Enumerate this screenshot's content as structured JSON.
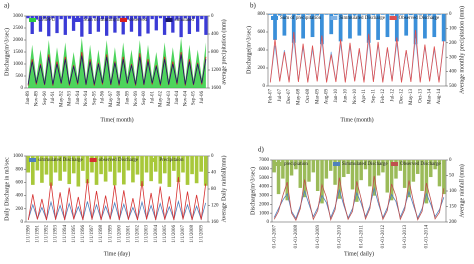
{
  "chart_data": [
    {
      "type": "line",
      "label": "a)",
      "xlabel": "Time( month)",
      "ylabel": "Discharge(m^3/sec)",
      "y2label": "average precipitation (mm)",
      "legend": "top",
      "categories": [
        "Jan-89",
        null,
        "Nov-89",
        null,
        "Sep-90",
        null,
        "Jul-91",
        null,
        "May-92",
        null,
        "Mar-93",
        null,
        "Jan-94",
        null,
        "Nov-94",
        null,
        "Sep-95",
        null,
        "Jul-96",
        null,
        "May-97",
        null,
        "Mar-98",
        null,
        "Jan-99",
        null,
        "Nov-99",
        null,
        "Sep-00",
        null,
        "Jul-01",
        null,
        "May-02",
        null,
        "Mar-03",
        null,
        "Jan-04",
        null,
        "Nov-04",
        null,
        "Sep-05",
        null,
        "Jul-06",
        null
      ],
      "ylim": [
        0,
        3000
      ],
      "yticks": [
        0,
        500,
        1000,
        1500,
        2000,
        2500,
        3000
      ],
      "y2lim": [
        1600,
        0
      ],
      "y2ticks": [
        0,
        400,
        800,
        1200,
        1600
      ],
      "series": [
        {
          "name": "L95PPU",
          "color": "#2ecc40",
          "style": "area",
          "values": [
            300,
            1800,
            400,
            1600,
            350,
            2000,
            300,
            1700,
            450,
            1900,
            300,
            1500,
            400,
            2100,
            350,
            1800,
            300,
            1600,
            400,
            2000,
            350,
            1700,
            300,
            1900,
            450,
            1600,
            300,
            2000,
            350,
            1800,
            400,
            1500,
            300,
            1900,
            350,
            1700,
            400,
            2100,
            300,
            1800,
            350,
            1600,
            400,
            1900
          ]
        },
        {
          "name": "Sum of rainfall(mm)",
          "color": "#3b3bd6",
          "style": "bar",
          "axis": "y2",
          "values": [
            50,
            400,
            80,
            350,
            60,
            450,
            50,
            380,
            70,
            420,
            60,
            330,
            80,
            460,
            60,
            400,
            50,
            350,
            70,
            440,
            60,
            370,
            50,
            410,
            80,
            350,
            60,
            450,
            60,
            390,
            70,
            320,
            50,
            420,
            60,
            370,
            80,
            470,
            50,
            400,
            60,
            350,
            70,
            420
          ]
        },
        {
          "name": "observed",
          "color": "#d62020",
          "style": "line",
          "values": [
            100,
            1200,
            150,
            1000,
            120,
            1400,
            100,
            1100,
            180,
            1300,
            100,
            950,
            150,
            1500,
            120,
            1200,
            100,
            1050,
            150,
            1400,
            120,
            1100,
            100,
            1300,
            180,
            1000,
            100,
            1450,
            120,
            1200,
            150,
            950,
            100,
            1300,
            120,
            1100,
            150,
            1500,
            100,
            1200,
            120,
            1050,
            150,
            1300
          ]
        },
        {
          "name": "simulated",
          "color": "#1a1a6e",
          "style": "line",
          "values": [
            150,
            1100,
            200,
            950,
            150,
            1300,
            150,
            1000,
            200,
            1200,
            150,
            900,
            200,
            1350,
            150,
            1100,
            150,
            1000,
            200,
            1300,
            150,
            1050,
            150,
            1200,
            200,
            950,
            150,
            1300,
            150,
            1100,
            200,
            900,
            150,
            1200,
            150,
            1000,
            200,
            1400,
            150,
            1100,
            150,
            1000,
            200,
            1200
          ]
        }
      ]
    },
    {
      "type": "line",
      "label": "b)",
      "xlabel": "Time (month)",
      "ylabel": "Discharge(m^3/sec)",
      "y2label": "Average monthly precipitation (mm)",
      "legend": "top",
      "categories": [
        "Feb-07",
        null,
        "Jul-07",
        null,
        "Dec-07",
        null,
        "May-08",
        null,
        "Oct-08",
        null,
        "Mar-09",
        null,
        "Aug-09",
        null,
        "Jan-10",
        null,
        "Jun-10",
        null,
        "Nov-10",
        null,
        "Apr-11",
        null,
        "Sep-11",
        null,
        "Feb-12",
        null,
        "Jul-12",
        null,
        "Dec-12",
        null,
        "May-13",
        null,
        "Oct-13",
        null,
        "Mar-14",
        null,
        "Aug-14",
        null
      ],
      "ylim": [
        0,
        800
      ],
      "yticks": [
        0,
        200,
        400,
        600,
        800
      ],
      "y2lim": [
        500,
        0
      ],
      "y2ticks": [
        0,
        100,
        200,
        300,
        400,
        500
      ],
      "series": [
        {
          "name": "Sum of precipitation",
          "color": "#3a8fd9",
          "style": "bar",
          "axis": "y2",
          "values": [
            5,
            180,
            10,
            150,
            5,
            200,
            8,
            170,
            5,
            160,
            10,
            210,
            5,
            140,
            8,
            190,
            5,
            170,
            10,
            150,
            5,
            200,
            8,
            180,
            5,
            160,
            10,
            190,
            5,
            150,
            8,
            210,
            5,
            170,
            10,
            160,
            5,
            190
          ]
        },
        {
          "name": "Simmulated Discharge",
          "color": "#7fb2e5",
          "style": "line",
          "values": [
            50,
            450,
            60,
            400,
            50,
            520,
            55,
            430,
            50,
            410,
            60,
            500,
            50,
            380,
            55,
            470,
            50,
            440,
            60,
            400,
            50,
            510,
            55,
            460,
            50,
            420,
            60,
            480,
            50,
            390,
            55,
            530,
            50,
            440,
            60,
            410,
            50,
            470
          ]
        },
        {
          "name": "Observed Discharge",
          "color": "#e05050",
          "style": "line",
          "values": [
            40,
            520,
            50,
            380,
            40,
            600,
            45,
            470,
            40,
            450,
            50,
            560,
            40,
            350,
            45,
            520,
            40,
            480,
            50,
            420,
            40,
            580,
            45,
            490,
            40,
            430,
            50,
            540,
            40,
            400,
            45,
            620,
            40,
            460,
            50,
            440,
            40,
            500
          ]
        }
      ]
    },
    {
      "type": "line",
      "label": null,
      "xlabel": "Time (day)",
      "ylabel": "Daily Discharge in m3/sec",
      "y2label": "Average Daily rainfall(mm)",
      "legend": "top",
      "categories": [
        "1/1/1990",
        null,
        "1/1/1991",
        null,
        "1/1/1992",
        null,
        "1/1/1993",
        null,
        "1/1/1994",
        null,
        "1/1/1995",
        null,
        "1/1/1996",
        null,
        "1/1/1997",
        null,
        "1/1/1998",
        null,
        "1/1/1999",
        null,
        "1/1/2000",
        null,
        "1/1/2001",
        null,
        "1/1/2002",
        null,
        "1/1/2003",
        null,
        "1/1/2004",
        null,
        "1/1/2005",
        null,
        "1/1/2006",
        null,
        "1/1/2007",
        null,
        "1/1/2008",
        null,
        "1/1/2009",
        null
      ],
      "ylim": [
        0,
        1000
      ],
      "yticks": [
        0,
        200,
        400,
        600,
        800,
        1000
      ],
      "y2lim": [
        160,
        0
      ],
      "y2ticks": [
        0,
        40,
        80,
        120,
        160
      ],
      "series": [
        {
          "name": "simmulated Discharge",
          "color": "#4f81bd",
          "style": "line",
          "values": [
            40,
            260,
            50,
            220,
            40,
            300,
            45,
            250,
            40,
            280,
            50,
            230,
            40,
            310,
            45,
            260,
            40,
            240,
            50,
            290,
            40,
            270,
            45,
            220,
            40,
            300,
            50,
            250,
            40,
            280,
            45,
            230,
            40,
            310,
            50,
            260,
            40,
            240,
            45,
            290
          ]
        },
        {
          "name": "observed Discharge",
          "color": "#d63030",
          "style": "line",
          "values": [
            30,
            420,
            40,
            350,
            30,
            600,
            35,
            450,
            30,
            520,
            40,
            380,
            30,
            650,
            35,
            470,
            30,
            400,
            40,
            560,
            30,
            480,
            35,
            360,
            30,
            620,
            40,
            440,
            30,
            540,
            35,
            390,
            30,
            680,
            40,
            460,
            30,
            410,
            35,
            580
          ]
        },
        {
          "name": "Precipitaion",
          "color": "#a8c83a",
          "style": "bar",
          "axis": "y2",
          "values": [
            40,
            70,
            35,
            65,
            45,
            72,
            40,
            60,
            38,
            68,
            42,
            74,
            36,
            66,
            40,
            70,
            44,
            62,
            38,
            71,
            40,
            69,
            35,
            64,
            45,
            73,
            40,
            61,
            38,
            67,
            42,
            75,
            36,
            63,
            40,
            70,
            44,
            66,
            38,
            72
          ]
        }
      ]
    },
    {
      "type": "line",
      "label": "d)",
      "xlabel": "Time( daily)",
      "ylabel": "Discharge(m^3/sec)",
      "y2label": "Average rainfall (mm)",
      "legend": "top",
      "categories": [
        "01-01-2007",
        null,
        null,
        null,
        null,
        "01-01-2008",
        null,
        null,
        null,
        null,
        "01-01-2009",
        null,
        null,
        null,
        null,
        "01-01-2010",
        null,
        null,
        null,
        null,
        "01-01-2011",
        null,
        null,
        null,
        null,
        "01-01-2012",
        null,
        null,
        null,
        null,
        "01-01-2013",
        null,
        null,
        null,
        null,
        "01-01-2014",
        null,
        null,
        null,
        null
      ],
      "ylim": [
        0,
        7000
      ],
      "yticks": [
        0,
        1000,
        2000,
        3000,
        4000,
        5000,
        6000,
        7000
      ],
      "y2lim": [
        200,
        0
      ],
      "y2ticks": [
        0,
        50,
        100,
        150,
        200
      ],
      "series": [
        {
          "name": "precipiation",
          "color": "#9bbb59",
          "style": "bar",
          "axis": "y2",
          "values": [
            40,
            110,
            60,
            130,
            50,
            30,
            90,
            120,
            70,
            40,
            100,
            140,
            60,
            35,
            80,
            125,
            55,
            45,
            95,
            135,
            65,
            30,
            85,
            115,
            50,
            40,
            105,
            130,
            60,
            35,
            90,
            120,
            70,
            45,
            100,
            140,
            55,
            30,
            85,
            110
          ]
        },
        {
          "name": "Simmulated Discharge",
          "color": "#4f81bd",
          "style": "line",
          "values": [
            500,
            1500,
            2500,
            3200,
            1200,
            400,
            1800,
            3500,
            2000,
            600,
            1600,
            3000,
            2200,
            500,
            1700,
            3600,
            1900,
            450,
            1500,
            3300,
            2100,
            600,
            1800,
            3800,
            2000,
            500,
            1600,
            3100,
            2300,
            550,
            1700,
            3400,
            1900,
            450,
            1500,
            3200,
            2000,
            600,
            1400,
            2800
          ]
        },
        {
          "name": "Observed Discharge",
          "color": "#c0504d",
          "style": "line",
          "values": [
            300,
            1200,
            3000,
            4500,
            1000,
            200,
            1500,
            4800,
            2500,
            300,
            1300,
            4200,
            2800,
            250,
            1400,
            5000,
            2200,
            300,
            1200,
            4600,
            2600,
            350,
            1500,
            5200,
            2400,
            300,
            1300,
            4300,
            2900,
            300,
            1400,
            4700,
            2300,
            250,
            1200,
            4400,
            2500,
            350,
            1100,
            3800
          ]
        }
      ]
    }
  ]
}
